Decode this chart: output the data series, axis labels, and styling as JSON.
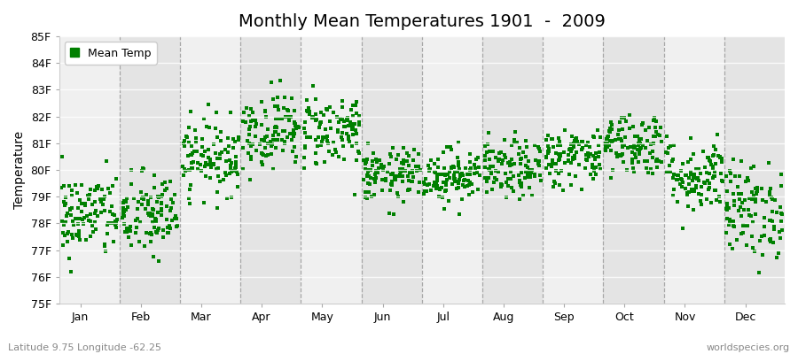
{
  "title": "Monthly Mean Temperatures 1901  -  2009",
  "ylabel": "Temperature",
  "xlabel_labels": [
    "Jan",
    "Feb",
    "Mar",
    "Apr",
    "May",
    "Jun",
    "Jul",
    "Aug",
    "Sep",
    "Oct",
    "Nov",
    "Dec"
  ],
  "bottom_left_text": "Latitude 9.75 Longitude -62.25",
  "bottom_right_text": "worldspecies.org",
  "ylim": [
    75,
    85
  ],
  "ytick_labels": [
    "75F",
    "76F",
    "77F",
    "78F",
    "79F",
    "80F",
    "81F",
    "82F",
    "83F",
    "84F",
    "85F"
  ],
  "ytick_values": [
    75,
    76,
    77,
    78,
    79,
    80,
    81,
    82,
    83,
    84,
    85
  ],
  "dot_color": "#008000",
  "background_color": "#ffffff",
  "plot_bg_color": "#f5f5f5",
  "band_even_color": "#f0f0f0",
  "band_odd_color": "#e0e0e0",
  "legend_label": "Mean Temp",
  "num_years": 109,
  "seed": 42,
  "month_means": [
    78.3,
    78.3,
    80.5,
    81.5,
    81.5,
    79.8,
    79.8,
    80.0,
    80.5,
    81.0,
    79.8,
    78.5
  ],
  "month_stds": [
    0.8,
    0.8,
    0.7,
    0.7,
    0.7,
    0.5,
    0.5,
    0.55,
    0.55,
    0.6,
    0.7,
    0.9
  ],
  "title_fontsize": 14,
  "axis_label_fontsize": 10,
  "tick_fontsize": 9,
  "legend_fontsize": 9,
  "marker_size": 5
}
